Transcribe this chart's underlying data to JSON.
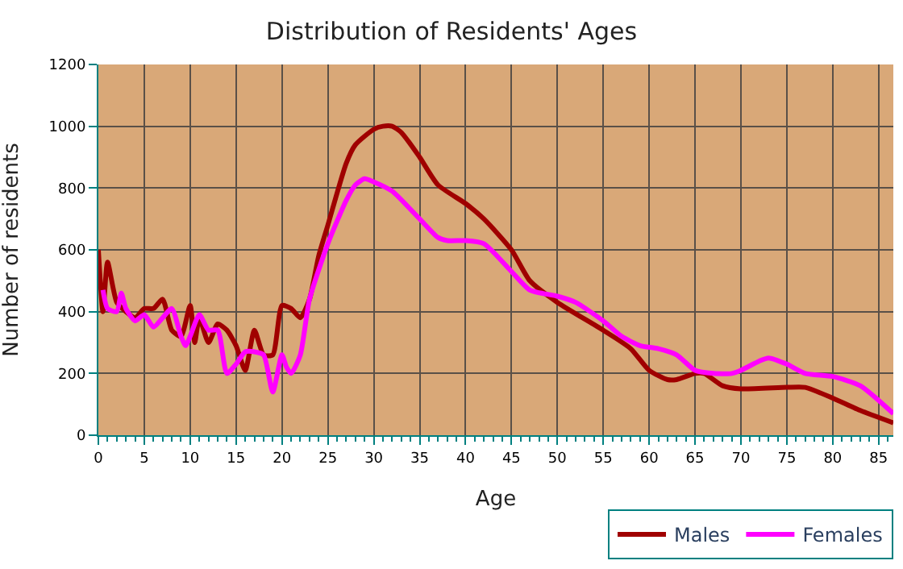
{
  "chart_data": {
    "type": "line",
    "title": "Distribution of Residents' Ages",
    "xlabel": "Age",
    "ylabel": "Number of residents",
    "xlim": [
      0,
      86.6
    ],
    "xticks": [
      0,
      5,
      10,
      15,
      20,
      25,
      30,
      35,
      40,
      45,
      50,
      55,
      60,
      65,
      70,
      75,
      80,
      85
    ],
    "ylim": [
      0,
      1200
    ],
    "yticks": [
      0,
      200,
      400,
      600,
      800,
      1000,
      1200
    ],
    "grid": true,
    "legend": "bottom right",
    "marker": "none",
    "line_style": "solid",
    "series": [
      {
        "name": "Males",
        "color": "#a00000",
        "x": [
          0,
          0.5,
          1,
          2,
          3,
          4,
          5,
          6,
          7,
          8,
          9,
          10,
          10.5,
          11,
          12,
          13,
          14,
          15,
          16,
          17,
          18,
          19,
          20,
          21,
          22,
          23,
          24,
          25,
          27,
          28,
          30,
          31,
          32,
          33,
          35,
          37,
          40,
          42,
          45,
          47,
          50,
          55,
          58,
          60,
          62,
          63,
          65,
          66,
          68,
          70,
          75,
          77,
          80,
          83,
          86.6
        ],
        "values": [
          600,
          400,
          560,
          430,
          400,
          380,
          410,
          410,
          440,
          340,
          320,
          420,
          300,
          380,
          300,
          360,
          340,
          290,
          210,
          340,
          260,
          260,
          420,
          410,
          380,
          440,
          580,
          680,
          880,
          940,
          990,
          1000,
          1000,
          980,
          900,
          810,
          750,
          700,
          600,
          500,
          430,
          340,
          280,
          210,
          180,
          180,
          200,
          200,
          160,
          150,
          155,
          155,
          120,
          80,
          40
        ]
      },
      {
        "name": "Females",
        "color": "#ff00ff",
        "x": [
          0.5,
          1,
          2,
          2.5,
          3,
          4,
          5,
          6,
          7,
          8,
          9,
          9.5,
          10,
          11,
          12,
          13,
          14,
          15,
          16,
          17,
          18,
          19,
          20,
          20.5,
          21,
          22,
          23,
          25,
          27,
          28,
          29,
          30,
          32,
          35,
          37,
          38,
          40,
          42,
          45,
          47,
          50,
          52,
          55,
          57,
          59,
          61,
          63,
          65,
          67,
          69,
          70,
          72,
          73,
          75,
          77,
          80,
          83,
          86.6
        ],
        "values": [
          470,
          410,
          400,
          460,
          410,
          370,
          390,
          350,
          380,
          410,
          320,
          290,
          320,
          390,
          340,
          340,
          200,
          230,
          270,
          270,
          260,
          140,
          260,
          220,
          200,
          260,
          440,
          620,
          760,
          810,
          830,
          820,
          790,
          700,
          640,
          630,
          630,
          620,
          530,
          470,
          450,
          430,
          370,
          320,
          290,
          280,
          260,
          210,
          200,
          200,
          210,
          240,
          250,
          230,
          200,
          190,
          160,
          70
        ]
      }
    ]
  }
}
